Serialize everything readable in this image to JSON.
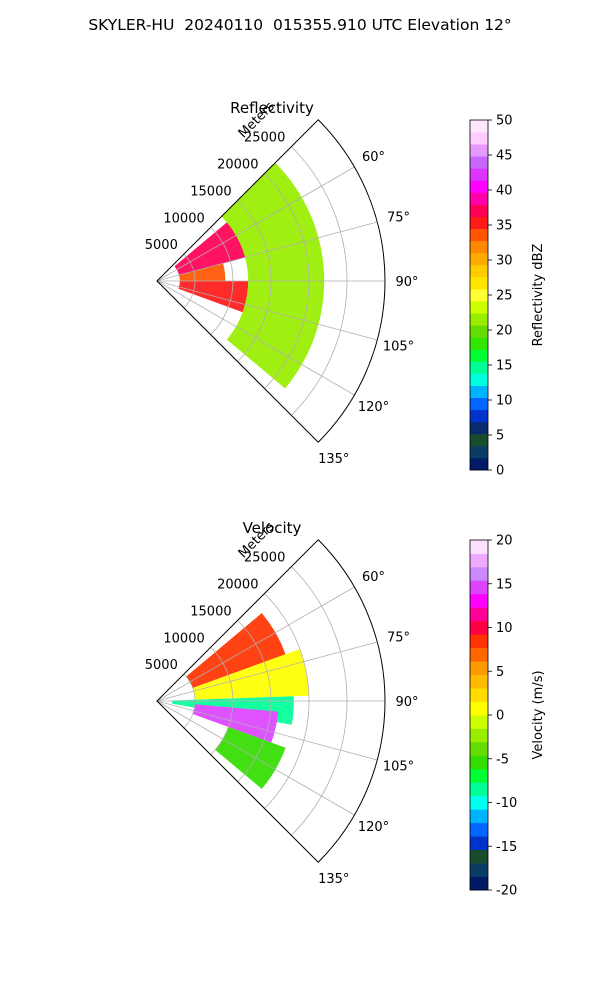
{
  "suptitle": "SKYLER-HU  20240110  015355.910 UTC Elevation 12°",
  "chart_data": [
    {
      "type": "heatmap",
      "projection": "polar-sector",
      "title": "Reflectivity",
      "radial_label": "Meters",
      "radial_ticks": [
        "5000",
        "10000",
        "15000",
        "20000",
        "25000"
      ],
      "radial_tick_values": [
        5000,
        10000,
        15000,
        20000,
        25000
      ],
      "rlim": [
        0,
        30000
      ],
      "azimuth_ticks": [
        "60°",
        "75°",
        "90°",
        "105°",
        "120°",
        "135°"
      ],
      "azimuth_tick_values": [
        60,
        75,
        90,
        105,
        120,
        135
      ],
      "azimuth_range": [
        45,
        135
      ],
      "grid": true,
      "colorbar": {
        "label": "Reflectivity dBZ",
        "ticks": [
          "0",
          "5",
          "10",
          "15",
          "20",
          "25",
          "30",
          "35",
          "40",
          "45",
          "50"
        ],
        "range": [
          0,
          50
        ]
      },
      "field_summary": [
        {
          "azimuth_range": [
            50,
            75
          ],
          "range_m": [
            3000,
            14000
          ],
          "value": 37
        },
        {
          "azimuth_range": [
            75,
            90
          ],
          "range_m": [
            3000,
            9000
          ],
          "value": 33
        },
        {
          "azimuth_range": [
            90,
            110
          ],
          "range_m": [
            3000,
            12000
          ],
          "value": 36
        },
        {
          "azimuth_range": [
            45,
            130
          ],
          "range_m": [
            12000,
            22000
          ],
          "value": 21
        }
      ]
    },
    {
      "type": "heatmap",
      "projection": "polar-sector",
      "title": "Velocity",
      "radial_label": "Meters",
      "radial_ticks": [
        "5000",
        "10000",
        "15000",
        "20000",
        "25000"
      ],
      "radial_tick_values": [
        5000,
        10000,
        15000,
        20000,
        25000
      ],
      "rlim": [
        0,
        30000
      ],
      "azimuth_ticks": [
        "60°",
        "75°",
        "90°",
        "105°",
        "120°",
        "135°"
      ],
      "azimuth_tick_values": [
        60,
        75,
        90,
        105,
        120,
        135
      ],
      "azimuth_range": [
        45,
        135
      ],
      "grid": true,
      "colorbar": {
        "label": "Velocity (m/s)",
        "ticks": [
          "-20",
          "-15",
          "-10",
          "-5",
          "0",
          "5",
          "10",
          "15",
          "20"
        ],
        "range": [
          -20,
          20
        ]
      },
      "field_summary": [
        {
          "azimuth_range": [
            50,
            70
          ],
          "range_m": [
            5000,
            18000
          ],
          "value": 9
        },
        {
          "azimuth_range": [
            70,
            88
          ],
          "range_m": [
            5000,
            20000
          ],
          "value": 1
        },
        {
          "azimuth_range": [
            88,
            100
          ],
          "range_m": [
            2000,
            18000
          ],
          "value": -8
        },
        {
          "azimuth_range": [
            95,
            110
          ],
          "range_m": [
            5000,
            16000
          ],
          "value": 14
        },
        {
          "azimuth_range": [
            110,
            130
          ],
          "range_m": [
            10000,
            18000
          ],
          "value": -6
        }
      ]
    }
  ]
}
